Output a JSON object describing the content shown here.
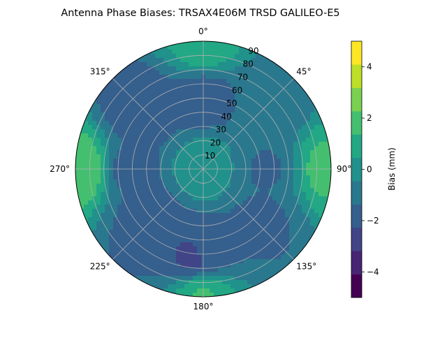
{
  "chart_data": {
    "type": "heatmap",
    "projection": "polar",
    "title": "Antenna Phase Biases: TRSAX4E06M      TRSD GALILEO-E5",
    "angle_ticks": [
      {
        "value": 0,
        "label": "0°"
      },
      {
        "value": 45,
        "label": "45°"
      },
      {
        "value": 90,
        "label": "90°"
      },
      {
        "value": 135,
        "label": "135°"
      },
      {
        "value": 180,
        "label": "180°"
      },
      {
        "value": 225,
        "label": "225°"
      },
      {
        "value": 270,
        "label": "270°"
      },
      {
        "value": 315,
        "label": "315°"
      }
    ],
    "theta_zero": "N",
    "theta_direction": "clockwise",
    "radial_ticks": [
      10,
      20,
      30,
      40,
      50,
      60,
      70,
      80,
      90
    ],
    "rlim": [
      0,
      90
    ],
    "grid": true,
    "colorbar": {
      "label": "Bias (mm)",
      "range": [
        -5,
        5
      ],
      "ticks": [
        -4,
        -2,
        0,
        2,
        4
      ],
      "levels": [
        -5,
        -4.5,
        -4,
        -3.5,
        -3,
        -2.5,
        -2,
        -1.5,
        -1,
        -0.5,
        0,
        0.5,
        1,
        1.5,
        2,
        2.5,
        3,
        3.5,
        4,
        4.5,
        5
      ],
      "colors": [
        "#440154",
        "#482475",
        "#414487",
        "#355f8d",
        "#2a788e",
        "#21918c",
        "#22a884",
        "#44bf70",
        "#7ad151",
        "#bddf26",
        "#fde725"
      ]
    },
    "contour_regions": [
      {
        "bias_level": -2,
        "description_values": [
          -2.5,
          -2.0
        ]
      },
      {
        "bias_level": -3,
        "description_values": [
          -3.0,
          -2.5
        ]
      },
      {
        "bias_level": -1,
        "description_values": [
          -1.0,
          -0.5
        ]
      },
      {
        "bias_level": 0,
        "description_values": [
          0.0,
          0.5
        ]
      },
      {
        "bias_level": 1,
        "description_values": [
          0.5,
          1.0
        ]
      },
      {
        "bias_level": 2,
        "description_values": [
          1.5,
          2.0
        ]
      },
      {
        "bias_level": 3,
        "description_values": [
          2.0,
          2.5
        ]
      }
    ],
    "bias_field": [
      {
        "azimuth": 0,
        "zenith": 0,
        "bias": 0.2
      },
      {
        "azimuth": 0,
        "zenith": 50,
        "bias": -1.8
      },
      {
        "azimuth": 315,
        "zenith": 60,
        "bias": -2.1
      },
      {
        "azimuth": 45,
        "zenith": 60,
        "bias": -1.2
      },
      {
        "azimuth": 90,
        "zenith": 45,
        "bias": -1.4
      },
      {
        "azimuth": 135,
        "zenith": 55,
        "bias": -1.5
      },
      {
        "azimuth": 180,
        "zenith": 60,
        "bias": -1.7
      },
      {
        "azimuth": 185,
        "zenith": 62,
        "bias": -2.6
      },
      {
        "azimuth": 225,
        "zenith": 50,
        "bias": -1.9
      },
      {
        "azimuth": 270,
        "zenith": 50,
        "bias": -1.6
      },
      {
        "azimuth": 0,
        "zenith": 88,
        "bias": 1.0
      },
      {
        "azimuth": 90,
        "zenith": 88,
        "bias": 1.6
      },
      {
        "azimuth": 180,
        "zenith": 88,
        "bias": 1.4
      },
      {
        "azimuth": 270,
        "zenith": 88,
        "bias": 2.2
      }
    ]
  }
}
